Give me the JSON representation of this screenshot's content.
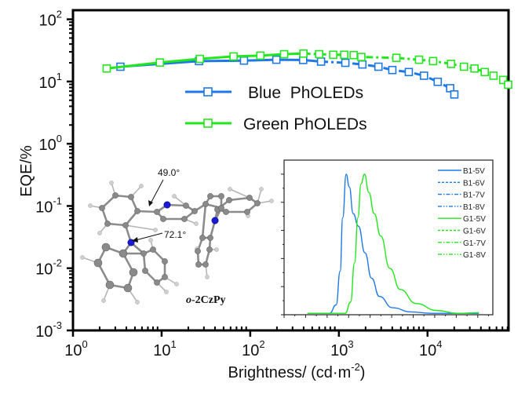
{
  "chart_data": [
    {
      "type": "line",
      "title": "",
      "xlabel": "Brightness/ (cd·m",
      "xlabel_sup": "-2",
      "xlabel_close": ")",
      "ylabel": "EQE/%",
      "x_scale": "log",
      "y_scale": "log",
      "xlim": [
        1,
        82000
      ],
      "ylim": [
        0.001,
        140
      ],
      "x_ticks": [
        {
          "base": "10",
          "exp": "0"
        },
        {
          "base": "10",
          "exp": "1"
        },
        {
          "base": "10",
          "exp": "2"
        },
        {
          "base": "10",
          "exp": "3"
        },
        {
          "base": "10",
          "exp": "4"
        }
      ],
      "x_tick_values": [
        1,
        10,
        100,
        1000,
        10000
      ],
      "y_ticks": [
        {
          "base": "10",
          "exp": "-3"
        },
        {
          "base": "10",
          "exp": "-2"
        },
        {
          "base": "10",
          "exp": "-1"
        },
        {
          "base": "10",
          "exp": "0"
        },
        {
          "base": "10",
          "exp": "1"
        },
        {
          "base": "10",
          "exp": "2"
        }
      ],
      "y_tick_values": [
        0.001,
        0.01,
        0.1,
        1,
        10,
        100
      ],
      "grid": false,
      "legend_position": "upper-center",
      "series": [
        {
          "name": "Blue  PhOLEDs",
          "color": "#1e78e6",
          "marker": "open-square",
          "x": [
            3.43,
            26.4,
            85,
            197,
            395,
            629,
            1183,
            1842,
            2794,
            4008,
            6150,
            9125,
            13040,
            18020,
            20080
          ],
          "y": [
            17.3,
            21.3,
            21.7,
            22.4,
            22.2,
            20.9,
            20.0,
            18.8,
            17.3,
            15.3,
            14.2,
            12.4,
            9.9,
            7.8,
            6.2
          ]
        },
        {
          "name": "Green PhOLEDs",
          "color": "#22e61e",
          "marker": "open-square",
          "x": [
            2.4,
            9.56,
            27.0,
            64.8,
            130,
            241,
            398,
            599,
            863,
            1149,
            1466,
            1790,
            4453,
            8020,
            11560,
            18420,
            25800,
            33880,
            44200,
            55500,
            71400,
            81200
          ],
          "y": [
            16.2,
            20.2,
            23.1,
            25.3,
            26.1,
            27.5,
            28.1,
            27.5,
            26.9,
            26.9,
            26.6,
            24.8,
            24.0,
            22.4,
            21.3,
            19.2,
            17.3,
            16.2,
            14.2,
            12.4,
            10.6,
            8.9
          ]
        }
      ]
    },
    {
      "type": "line",
      "title": "",
      "xlabel": "",
      "ylabel": "",
      "x_tick_labels_shown": false,
      "y_tick_labels_shown": false,
      "xlim": [
        0,
        19.4
      ],
      "ylim": [
        0,
        1.1
      ],
      "grid": false,
      "legend_position": "top-right",
      "legend": [
        {
          "name": "B1-5V",
          "color": "#1e78e6",
          "dash": "solid"
        },
        {
          "name": "B1-6V",
          "color": "#1e78e6",
          "dash": "dash"
        },
        {
          "name": "B1-7V",
          "color": "#1e78e6",
          "dash": "dash-dot"
        },
        {
          "name": "B1-8V",
          "color": "#1e78e6",
          "dash": "dash-dot-dot"
        },
        {
          "name": "G1-5V",
          "color": "#22e61e",
          "dash": "solid"
        },
        {
          "name": "G1-6V",
          "color": "#22e61e",
          "dash": "dash"
        },
        {
          "name": "G1-7V",
          "color": "#22e61e",
          "dash": "dash-dot"
        },
        {
          "name": "G1-8V",
          "color": "#22e61e",
          "dash": "dash-dot-dot"
        }
      ],
      "series": [
        {
          "group": "blue",
          "color": "#1e78e6",
          "x": [
            2.17,
            4.23,
            4.84,
            5.21,
            5.45,
            5.77,
            6.06,
            6.42,
            6.91,
            7.52,
            8.13,
            8.86,
            10.07,
            11.78,
            13.72,
            18.1
          ],
          "y": [
            0.01,
            0.01,
            0.07,
            0.31,
            0.69,
            1.0,
            0.91,
            0.72,
            0.63,
            0.44,
            0.26,
            0.13,
            0.05,
            0.02,
            0.01,
            0.01
          ]
        },
        {
          "group": "green",
          "color": "#22e61e",
          "x": [
            2.17,
            5.69,
            6.18,
            6.55,
            6.86,
            7.15,
            7.47,
            7.88,
            8.37,
            8.98,
            9.83,
            10.8,
            12.26,
            14.21,
            16.15,
            18.1
          ],
          "y": [
            0.01,
            0.01,
            0.09,
            0.37,
            0.69,
            0.93,
            1.0,
            0.87,
            0.72,
            0.56,
            0.33,
            0.18,
            0.08,
            0.03,
            0.01,
            0.015
          ]
        }
      ]
    }
  ],
  "molecule": {
    "name": "o-2CzPy",
    "name_prefix": "o",
    "name_rest": "-2CzPy",
    "angle_1": "49.0°",
    "angle_2": "72.1°",
    "atom_colors": {
      "carbon": "#8a8a8a",
      "nitrogen": "#1a1ad6",
      "hydrogen": "#d0d0d0"
    }
  }
}
